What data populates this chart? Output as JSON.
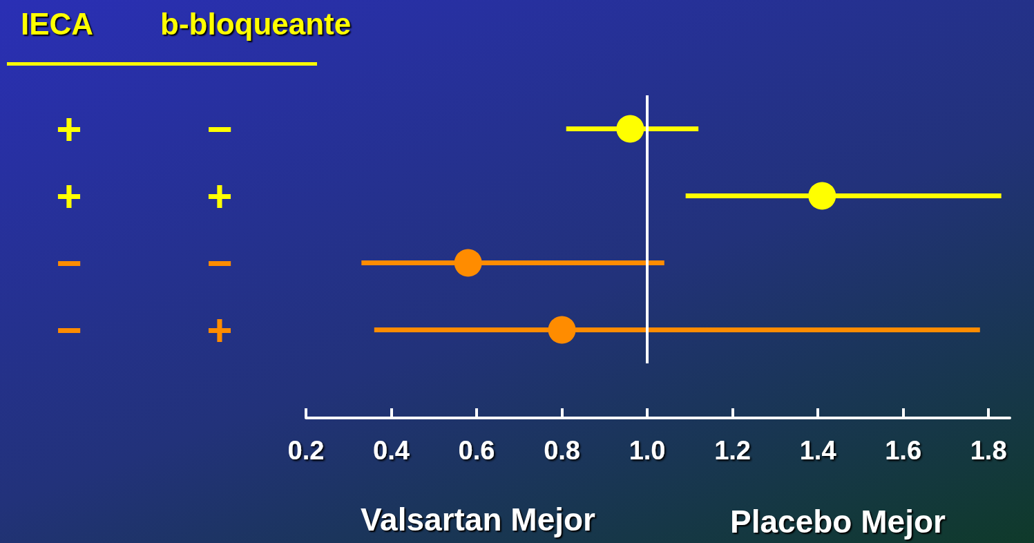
{
  "chart_data": {
    "type": "scatter",
    "orientation": "horizontal",
    "categories": [
      "+",
      "+",
      "−",
      "−"
    ],
    "y2_categories": [
      "−",
      "+",
      "−",
      "+"
    ],
    "values": [
      0.96,
      1.41,
      0.58,
      0.8
    ],
    "errors": [
      [
        0.81,
        1.12
      ],
      [
        1.09,
        1.83
      ],
      [
        0.33,
        1.04
      ],
      [
        0.36,
        1.78
      ]
    ],
    "colors": [
      "#ffff00",
      "#ffff00",
      "#ff8c00",
      "#ff8c00"
    ],
    "marker": "circle",
    "xlim": [
      0.2,
      1.85
    ],
    "xticks": [
      0.2,
      0.4,
      0.6,
      0.8,
      {
        "value": 1,
        "label": "1.0"
      },
      1.2,
      1.4,
      1.6,
      1.8
    ],
    "ref_lines": [
      {
        "axis": "x",
        "value": 1,
        "color": "#ffffff",
        "line_style": "solid"
      }
    ],
    "annotations": [
      "IECA",
      "b-bloqueante",
      "Valsartan Mejor",
      "Placebo Mejor"
    ],
    "grid": false
  }
}
